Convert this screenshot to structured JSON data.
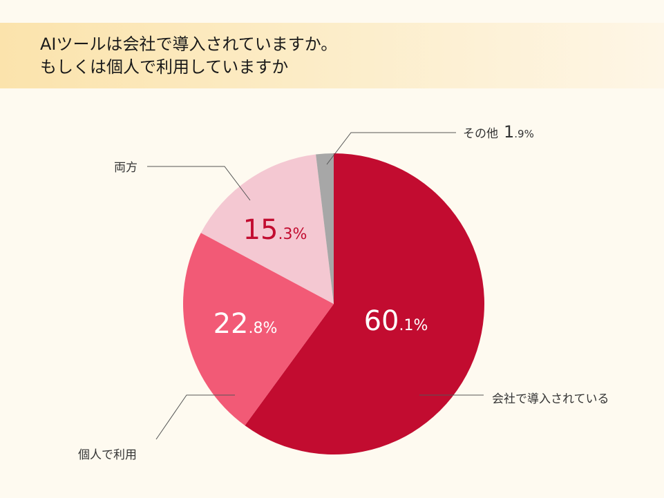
{
  "header": {
    "title_line1": "AIツールは会社で導入されていますか。",
    "title_line2": "もしくは個人で利用していますか"
  },
  "chart_data": {
    "type": "pie",
    "slices": [
      {
        "label": "会社で導入されている",
        "value": 60.1,
        "int": "60",
        "dec": ".1%",
        "color": "#c20c30",
        "text_color": "#ffffff"
      },
      {
        "label": "個人で利用",
        "value": 22.8,
        "int": "22",
        "dec": ".8%",
        "color": "#f25a76",
        "text_color": "#ffffff"
      },
      {
        "label": "両方",
        "value": 15.3,
        "int": "15",
        "dec": ".3%",
        "color": "#f4c8d2",
        "text_color": "#c20c30"
      },
      {
        "label": "その他",
        "value": 1.9,
        "int": "1",
        "dec": ".9%",
        "color": "#a7a7a7",
        "text_color": "#333333"
      }
    ]
  }
}
